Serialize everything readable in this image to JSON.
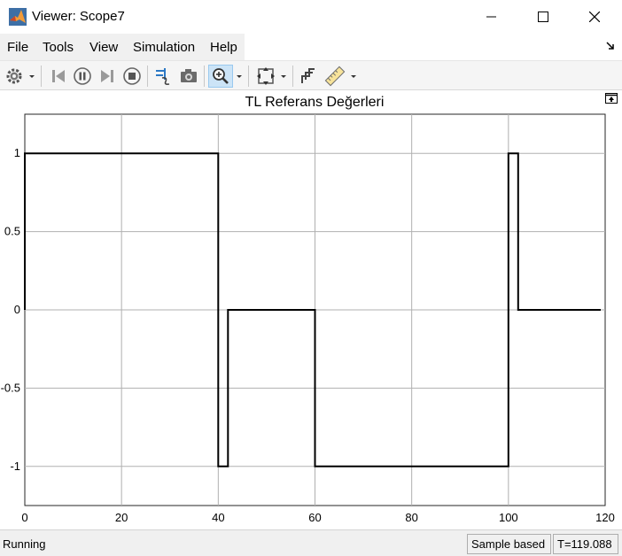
{
  "window": {
    "title": "Viewer: Scope7",
    "app_icon": "matlab-logo-icon"
  },
  "menu": {
    "items": [
      "File",
      "Tools",
      "View",
      "Simulation",
      "Help"
    ]
  },
  "toolbar": {
    "buttons": [
      "gear-icon",
      "dropdown-arrow-icon",
      "step-back-icon",
      "pause-icon",
      "step-forward-icon",
      "stop-icon",
      "highlight-block-icon",
      "camera-icon",
      "zoom-in-icon",
      "dropdown-arrow-icon",
      "scale-axes-icon",
      "dropdown-arrow-icon",
      "signal-select-icon",
      "measurement-ruler-icon",
      "dropdown-arrow-icon"
    ]
  },
  "plot": {
    "title": "TL Referans Değerleri"
  },
  "chart_data": {
    "type": "line",
    "title": "TL Referans Değerleri",
    "xlabel": "",
    "ylabel": "",
    "xlim": [
      0,
      120
    ],
    "ylim": [
      -1.25,
      1.25
    ],
    "x_ticks": [
      0,
      20,
      40,
      60,
      80,
      100,
      120
    ],
    "y_ticks": [
      1,
      0.5,
      0,
      -0.5,
      -1
    ],
    "x_tick_labels": [
      "0",
      "20",
      "40",
      "60",
      "80",
      "100",
      "120"
    ],
    "y_tick_labels": [
      "1",
      "0.5",
      "0",
      "-0.5",
      "-1"
    ],
    "grid": true,
    "series": [
      {
        "color": "#000000",
        "points": [
          [
            0,
            0
          ],
          [
            0,
            1
          ],
          [
            40,
            1
          ],
          [
            40,
            -1
          ],
          [
            42,
            -1
          ],
          [
            42,
            0
          ],
          [
            60,
            0
          ],
          [
            60,
            -1
          ],
          [
            100,
            -1
          ],
          [
            100,
            1
          ],
          [
            102,
            1
          ],
          [
            102,
            0
          ],
          [
            119.088,
            0
          ]
        ]
      }
    ]
  },
  "status": {
    "state": "Running",
    "mode": "Sample based",
    "time": "T=119.088"
  },
  "colors": {
    "menu_bg": "#f0f0f0",
    "toolbar_bg": "#f5f5f5",
    "active_tool": "#cce4f7",
    "grid": "#b0b0b0",
    "trace": "#000000"
  }
}
